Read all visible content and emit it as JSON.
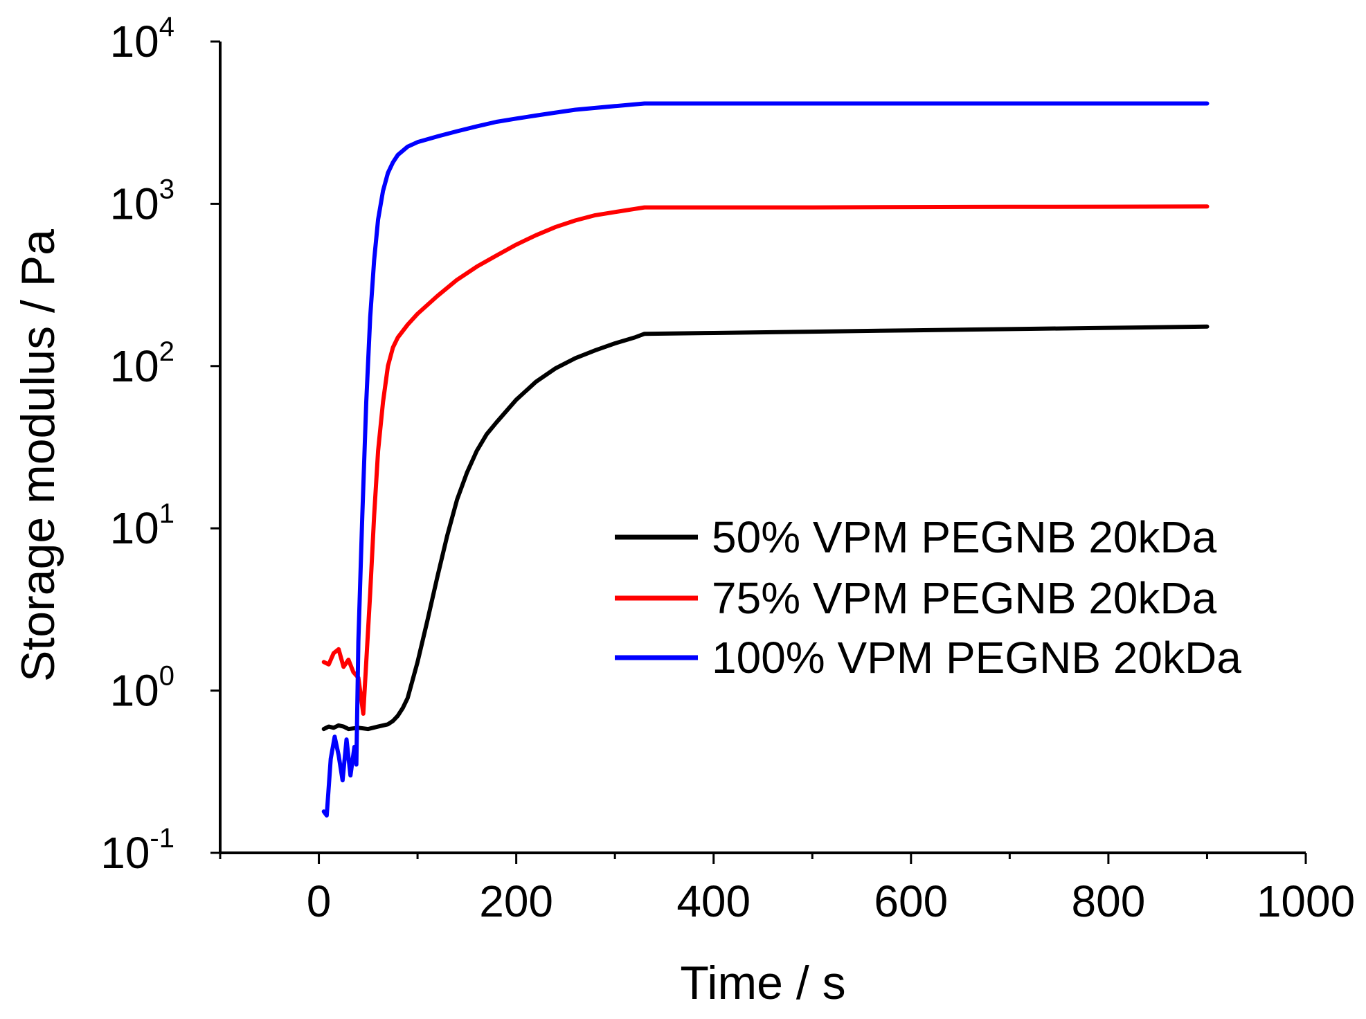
{
  "chart_data": {
    "type": "line",
    "title": "",
    "xlabel": "Time / s",
    "ylabel": "Storage modulus / Pa",
    "xlim": [
      -100,
      1000
    ],
    "ylim_log10": [
      -1,
      4
    ],
    "y_scale": "log",
    "x_ticks": [
      0,
      200,
      400,
      600,
      800,
      1000
    ],
    "x_minor_ticks": [
      -100,
      100,
      300,
      500,
      700,
      900
    ],
    "y_ticks": [
      {
        "base": "10",
        "exp": "-1",
        "value": 0.1
      },
      {
        "base": "10",
        "exp": "0",
        "value": 1
      },
      {
        "base": "10",
        "exp": "1",
        "value": 10
      },
      {
        "base": "10",
        "exp": "2",
        "value": 100
      },
      {
        "base": "10",
        "exp": "3",
        "value": 1000
      },
      {
        "base": "10",
        "exp": "4",
        "value": 10000
      }
    ],
    "legend_position": "center-right",
    "series": [
      {
        "name": "50% VPM PEGNB 20kDa",
        "color": "#000000",
        "x": [
          5,
          10,
          15,
          20,
          25,
          30,
          40,
          50,
          60,
          70,
          75,
          80,
          85,
          90,
          100,
          110,
          120,
          130,
          140,
          150,
          160,
          170,
          180,
          200,
          220,
          240,
          260,
          280,
          300,
          320,
          330,
          400,
          500,
          600,
          700,
          800,
          900
        ],
        "y": [
          0.58,
          0.6,
          0.59,
          0.61,
          0.6,
          0.58,
          0.59,
          0.58,
          0.6,
          0.62,
          0.65,
          0.7,
          0.78,
          0.9,
          1.5,
          2.7,
          5.0,
          9.0,
          15.0,
          22.0,
          30.0,
          38.0,
          45.0,
          62.0,
          80.0,
          97.0,
          112.0,
          125.0,
          138.0,
          150.0,
          158.0,
          160.0,
          163.0,
          166.0,
          169.0,
          172.0,
          175.0
        ]
      },
      {
        "name": "75% VPM PEGNB 20kDa",
        "color": "#ff0000",
        "x": [
          5,
          10,
          15,
          20,
          25,
          30,
          35,
          40,
          45,
          48,
          52,
          56,
          60,
          65,
          70,
          75,
          80,
          90,
          100,
          120,
          140,
          160,
          180,
          200,
          220,
          240,
          260,
          280,
          300,
          320,
          330,
          400,
          500,
          600,
          700,
          800,
          900
        ],
        "y": [
          1.5,
          1.45,
          1.7,
          1.8,
          1.4,
          1.55,
          1.3,
          1.2,
          0.72,
          1.5,
          4.0,
          12.0,
          30.0,
          60.0,
          100.0,
          130.0,
          150.0,
          180.0,
          210.0,
          270.0,
          340.0,
          410.0,
          480.0,
          560.0,
          640.0,
          720.0,
          790.0,
          850.0,
          890.0,
          930.0,
          950.0,
          950.0,
          950.0,
          955.0,
          958.0,
          960.0,
          962.0
        ]
      },
      {
        "name": "100% VPM PEGNB 20kDa",
        "color": "#0000ff",
        "x": [
          5,
          8,
          12,
          16,
          20,
          24,
          28,
          32,
          36,
          38,
          40,
          44,
          48,
          52,
          56,
          60,
          65,
          70,
          75,
          80,
          90,
          100,
          120,
          140,
          160,
          180,
          200,
          220,
          240,
          260,
          280,
          300,
          320,
          330,
          400,
          500,
          600,
          700,
          800,
          900
        ],
        "y": [
          0.18,
          0.17,
          0.38,
          0.52,
          0.4,
          0.28,
          0.5,
          0.3,
          0.45,
          0.35,
          2.0,
          12.0,
          60.0,
          200.0,
          450.0,
          800.0,
          1200.0,
          1550.0,
          1800.0,
          2000.0,
          2250.0,
          2400.0,
          2600.0,
          2800.0,
          3000.0,
          3200.0,
          3350.0,
          3500.0,
          3650.0,
          3800.0,
          3900.0,
          4000.0,
          4100.0,
          4150.0,
          4150.0,
          4150.0,
          4150.0,
          4150.0,
          4150.0,
          4150.0
        ]
      }
    ]
  }
}
